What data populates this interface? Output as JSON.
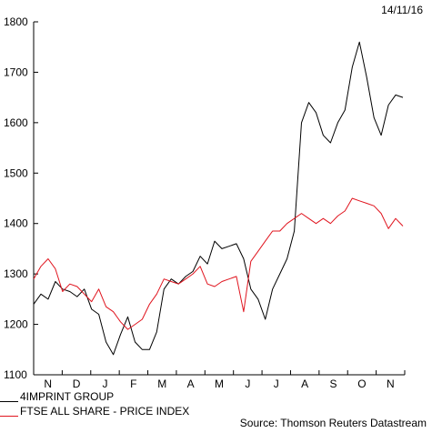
{
  "date_label": "14/11/16",
  "source": "Source: Thomson Reuters Datastream",
  "legend": [
    {
      "label": "4IMPRINT GROUP",
      "color": "#000000"
    },
    {
      "label": "FTSE ALL SHARE - PRICE INDEX",
      "color": "#e0141e"
    }
  ],
  "chart_data": {
    "type": "line",
    "title": "",
    "xlabel": "",
    "ylabel": "",
    "ylim": [
      1100,
      1800
    ],
    "yticks": [
      1100,
      1200,
      1300,
      1400,
      1500,
      1600,
      1700,
      1800
    ],
    "xticks": [
      "N",
      "D",
      "J",
      "F",
      "M",
      "A",
      "M",
      "J",
      "J",
      "A",
      "S",
      "O",
      "N"
    ],
    "grid": false,
    "legend_position": "bottom-left",
    "series": [
      {
        "name": "4IMPRINT GROUP",
        "color": "#000000",
        "values": [
          1240,
          1260,
          1250,
          1285,
          1270,
          1265,
          1255,
          1270,
          1230,
          1220,
          1165,
          1140,
          1180,
          1215,
          1165,
          1150,
          1150,
          1185,
          1270,
          1290,
          1280,
          1295,
          1305,
          1335,
          1320,
          1365,
          1350,
          1355,
          1360,
          1330,
          1270,
          1250,
          1210,
          1270,
          1300,
          1330,
          1385,
          1600,
          1640,
          1620,
          1575,
          1560,
          1600,
          1625,
          1710,
          1760,
          1690,
          1610,
          1575,
          1635,
          1655,
          1650
        ]
      },
      {
        "name": "FTSE ALL SHARE - PRICE INDEX",
        "color": "#e0141e",
        "values": [
          1290,
          1315,
          1330,
          1310,
          1265,
          1280,
          1275,
          1260,
          1245,
          1270,
          1235,
          1225,
          1205,
          1190,
          1200,
          1210,
          1240,
          1260,
          1290,
          1285,
          1280,
          1290,
          1300,
          1315,
          1280,
          1275,
          1285,
          1290,
          1295,
          1225,
          1325,
          1345,
          1365,
          1385,
          1385,
          1400,
          1410,
          1420,
          1410,
          1400,
          1410,
          1400,
          1415,
          1425,
          1450,
          1445,
          1440,
          1435,
          1420,
          1390,
          1410,
          1395
        ]
      }
    ]
  }
}
